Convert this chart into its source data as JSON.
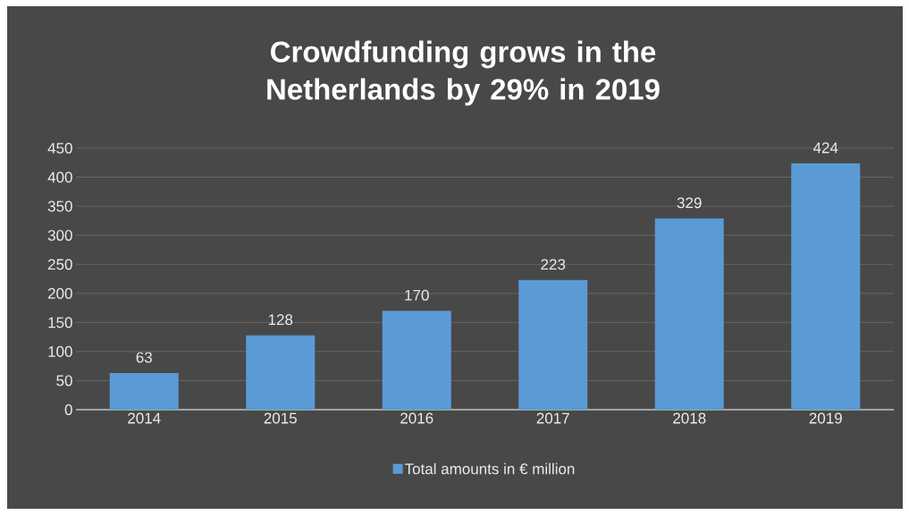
{
  "chart_data": {
    "type": "bar",
    "title": "Crowdfunding grows in the Netherlands by 29% in 2019",
    "categories": [
      "2014",
      "2015",
      "2016",
      "2017",
      "2018",
      "2019"
    ],
    "series": [
      {
        "name": "Total amounts in € million",
        "color": "#5b9bd5",
        "values": [
          63,
          128,
          170,
          223,
          329,
          424
        ]
      }
    ],
    "ylim": [
      0,
      450
    ],
    "yticks": [
      0,
      50,
      100,
      150,
      200,
      250,
      300,
      350,
      400,
      450
    ],
    "grid": "y",
    "legend": "bottom",
    "data_labels": true
  }
}
